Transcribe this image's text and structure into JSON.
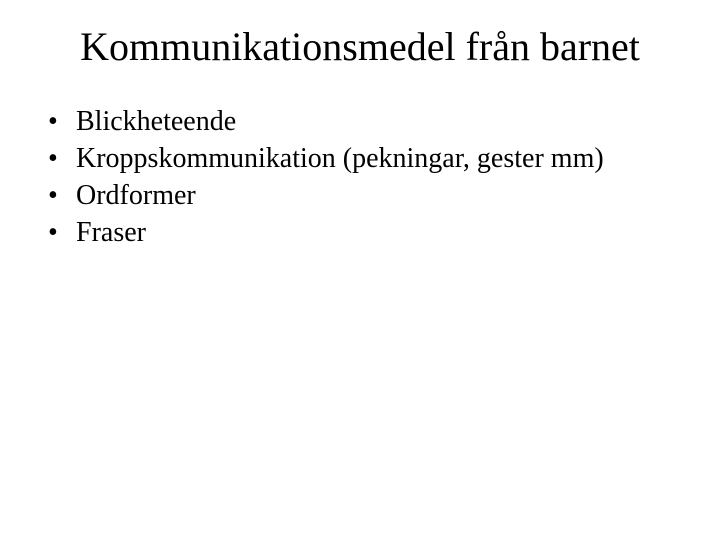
{
  "slide": {
    "title": "Kommunikationsmedel från barnet",
    "bullets": [
      "Blickheteende",
      "Kroppskommunikation (pekningar, gester mm)",
      "Ordformer",
      "Fraser"
    ],
    "title_fontsize": 40,
    "bullet_fontsize": 28,
    "background_color": "#ffffff",
    "text_color": "#000000",
    "font_family": "Times New Roman"
  }
}
